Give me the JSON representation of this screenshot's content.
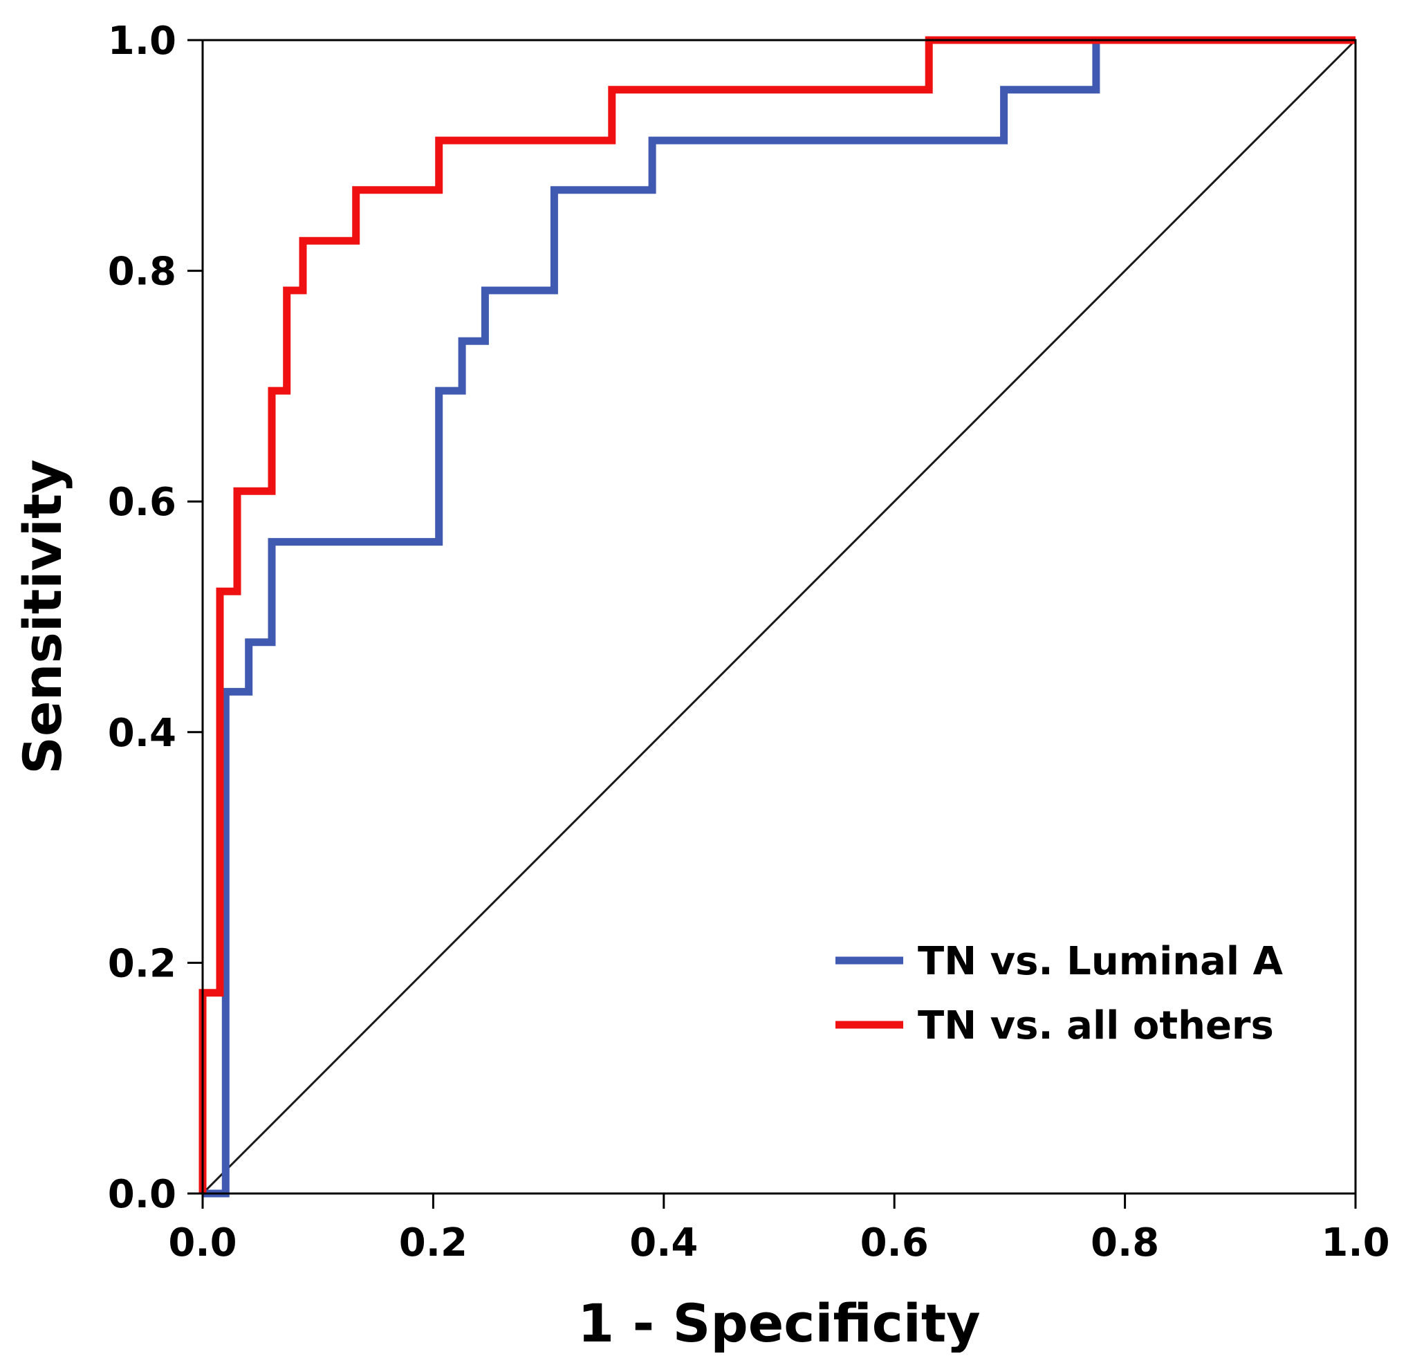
{
  "chart_data": {
    "type": "line",
    "title": "",
    "xlabel": "1 - Specificity",
    "ylabel": "Sensitivity",
    "xlim": [
      0,
      1
    ],
    "ylim": [
      0,
      1
    ],
    "x_ticks": [
      "0.0",
      "0.2",
      "0.4",
      "0.6",
      "0.8",
      "1.0"
    ],
    "y_ticks": [
      "0.0",
      "0.2",
      "0.4",
      "0.6",
      "0.8",
      "1.0"
    ],
    "grid": false,
    "legend_position": "bottom-right",
    "reference_line": {
      "from": [
        0,
        0
      ],
      "to": [
        1,
        1
      ],
      "color": "#1a1a1a"
    },
    "series": [
      {
        "name": "TN vs. Luminal A",
        "color": "#3f5ab0",
        "step": true,
        "x": [
          0.0,
          0.02,
          0.02,
          0.04,
          0.04,
          0.06,
          0.06,
          0.205,
          0.205,
          0.225,
          0.225,
          0.245,
          0.245,
          0.305,
          0.305,
          0.39,
          0.39,
          0.695,
          0.695,
          0.775,
          0.775,
          1.0
        ],
        "y": [
          0.0,
          0.0,
          0.435,
          0.435,
          0.478,
          0.478,
          0.565,
          0.565,
          0.696,
          0.696,
          0.739,
          0.739,
          0.783,
          0.783,
          0.87,
          0.87,
          0.913,
          0.913,
          0.957,
          0.957,
          1.0,
          1.0
        ]
      },
      {
        "name": "TN vs. all others",
        "color": "#ef1111",
        "step": true,
        "x": [
          0.0,
          0.0,
          0.015,
          0.015,
          0.03,
          0.03,
          0.06,
          0.06,
          0.073,
          0.073,
          0.087,
          0.087,
          0.133,
          0.133,
          0.205,
          0.205,
          0.355,
          0.355,
          0.63,
          0.63,
          1.0
        ],
        "y": [
          0.0,
          0.174,
          0.174,
          0.522,
          0.522,
          0.609,
          0.609,
          0.696,
          0.696,
          0.783,
          0.783,
          0.826,
          0.826,
          0.87,
          0.87,
          0.913,
          0.913,
          0.957,
          0.957,
          1.0,
          1.0
        ]
      }
    ]
  }
}
